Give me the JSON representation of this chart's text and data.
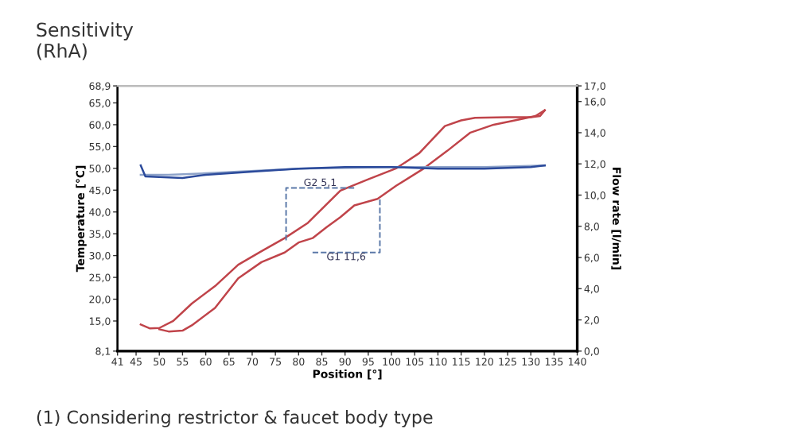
{
  "chart_data": {
    "type": "line",
    "title": "Sensitivity\n(RhA)",
    "xlabel": "Position [°]",
    "ylabel": "Temperature [°C]",
    "y2label": "Flow rate [l/min]",
    "annotations": [
      "(1) Considering restrictor & faucet body type"
    ],
    "series": [
      {
        "color": "#c0444a",
        "x": [
          46,
          48,
          50,
          53,
          57,
          62,
          67,
          72,
          77,
          82,
          89,
          95,
          101,
          106,
          111.5,
          115,
          118,
          125,
          130,
          132,
          133
        ],
        "values": [
          14.2,
          13.3,
          13.4,
          15,
          19,
          23,
          27.9,
          31,
          34,
          37.5,
          44.9,
          47.5,
          50,
          53.5,
          59.7,
          61,
          61.6,
          61.7,
          61.7,
          62,
          63.3
        ]
      },
      {
        "color": "#c0444a",
        "x": [
          50,
          52,
          55,
          57,
          62,
          67,
          72,
          77,
          80,
          83,
          86,
          89,
          92,
          97,
          101,
          107,
          112,
          117,
          122,
          128,
          131,
          133
        ],
        "values": [
          13.1,
          12.6,
          12.8,
          14,
          18,
          24.8,
          28.5,
          30.7,
          33,
          34,
          36.5,
          38.8,
          41.5,
          43,
          46,
          50,
          54,
          58.2,
          60,
          61.3,
          62,
          63.3
        ]
      },
      {
        "color": "#8ea3c9",
        "axis": "y2",
        "x": [
          46,
          52,
          60,
          80,
          100,
          120,
          133
        ],
        "values": [
          11.3,
          11.3,
          11.4,
          11.7,
          11.8,
          11.8,
          11.9
        ]
      },
      {
        "color": "#2b4a9b",
        "axis": "y2",
        "x": [
          46,
          47,
          55,
          60,
          70,
          80,
          90,
          100,
          110,
          120,
          130,
          133
        ],
        "values": [
          11.9,
          11.2,
          11.1,
          11.3,
          11.5,
          11.7,
          11.8,
          11.8,
          11.7,
          11.7,
          11.8,
          11.9
        ]
      },
      {
        "name": "G2 5,1",
        "color": "#5a78a8",
        "line_style": "dashed",
        "x": [
          77.3,
          77.3,
          92
        ],
        "values": [
          33.5,
          45.5,
          45.5
        ]
      },
      {
        "name": "G1 11,6",
        "color": "#5a78a8",
        "line_style": "dashed",
        "x": [
          83,
          97.5,
          97.5
        ],
        "values": [
          30.7,
          30.7,
          43
        ]
      }
    ],
    "xlim": [
      41,
      140
    ],
    "xticks": [
      41,
      45,
      50,
      55,
      60,
      65,
      70,
      75,
      80,
      85,
      90,
      95,
      100,
      105,
      110,
      115,
      120,
      125,
      130,
      135,
      140
    ],
    "ylim": [
      8.1,
      68.9
    ],
    "yticks": [
      {
        "value": 8.1,
        "label": "8,1"
      },
      {
        "value": 15,
        "label": "15,0"
      },
      {
        "value": 20,
        "label": "20,0"
      },
      {
        "value": 25,
        "label": "25,0"
      },
      {
        "value": 30,
        "label": "30,0"
      },
      {
        "value": 35,
        "label": "35,0"
      },
      {
        "value": 40,
        "label": "40,0"
      },
      {
        "value": 45,
        "label": "45,0"
      },
      {
        "value": 50,
        "label": "50,0"
      },
      {
        "value": 55,
        "label": "55,0"
      },
      {
        "value": 60,
        "label": "60,0"
      },
      {
        "value": 65,
        "label": "65,0"
      },
      {
        "value": 68.9,
        "label": "68,9"
      }
    ],
    "y2lim": [
      0,
      17
    ],
    "y2ticks": [
      {
        "value": 0,
        "label": "0,0"
      },
      {
        "value": 2,
        "label": "2,0"
      },
      {
        "value": 4,
        "label": "4,0"
      },
      {
        "value": 6,
        "label": "6,0"
      },
      {
        "value": 8,
        "label": "8,0"
      },
      {
        "value": 10,
        "label": "10,0"
      },
      {
        "value": 12,
        "label": "12,0"
      },
      {
        "value": 14,
        "label": "14,0"
      },
      {
        "value": 16,
        "label": "16,0"
      },
      {
        "value": 17,
        "label": "17,0"
      }
    ],
    "grid": false,
    "legend": false
  }
}
